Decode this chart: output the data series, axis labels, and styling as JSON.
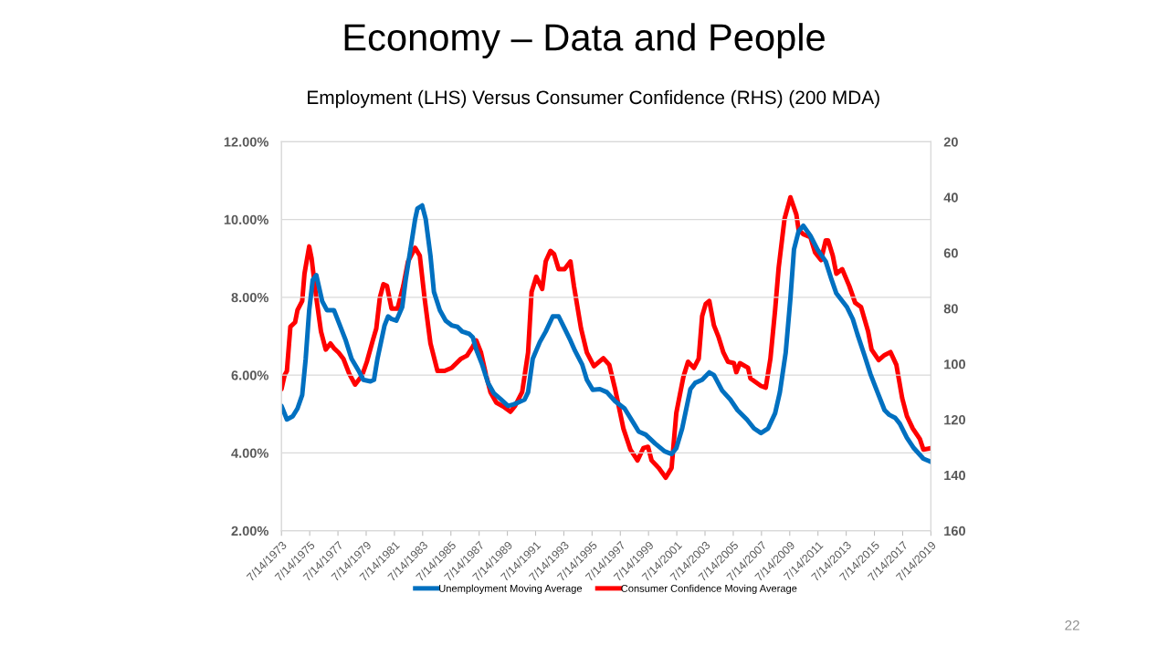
{
  "chart_data": {
    "type": "line",
    "title": "Economy – Data and People",
    "subtitle": "Employment (LHS) Versus Consumer Confidence (RHS) (200 MDA)",
    "annotations": [
      "22"
    ],
    "xlim": [
      "1973-07-14",
      "2019-07-14"
    ],
    "xticks": [
      {
        "value": "1973-07-14",
        "label": "7/14/1973"
      },
      {
        "value": "1975-07-14",
        "label": "7/14/1975"
      },
      {
        "value": "1977-07-14",
        "label": "7/14/1977"
      },
      {
        "value": "1979-07-14",
        "label": "7/14/1979"
      },
      {
        "value": "1981-07-14",
        "label": "7/14/1981"
      },
      {
        "value": "1983-07-14",
        "label": "7/14/1983"
      },
      {
        "value": "1985-07-14",
        "label": "7/14/1985"
      },
      {
        "value": "1987-07-14",
        "label": "7/14/1987"
      },
      {
        "value": "1989-07-14",
        "label": "7/14/1989"
      },
      {
        "value": "1991-07-14",
        "label": "7/14/1991"
      },
      {
        "value": "1993-07-14",
        "label": "7/14/1993"
      },
      {
        "value": "1995-07-14",
        "label": "7/14/1995"
      },
      {
        "value": "1997-07-14",
        "label": "7/14/1997"
      },
      {
        "value": "1999-07-14",
        "label": "7/14/1999"
      },
      {
        "value": "2001-07-14",
        "label": "7/14/2001"
      },
      {
        "value": "2003-07-14",
        "label": "7/14/2003"
      },
      {
        "value": "2005-07-14",
        "label": "7/14/2005"
      },
      {
        "value": "2007-07-14",
        "label": "7/14/2007"
      },
      {
        "value": "2009-07-14",
        "label": "7/14/2009"
      },
      {
        "value": "2011-07-14",
        "label": "7/14/2011"
      },
      {
        "value": "2013-07-14",
        "label": "7/14/2013"
      },
      {
        "value": "2015-07-14",
        "label": "7/14/2015"
      },
      {
        "value": "2017-07-14",
        "label": "7/14/2017"
      },
      {
        "value": "2019-07-14",
        "label": "7/14/2019"
      }
    ],
    "ylim": [
      2,
      12
    ],
    "yticks": [
      {
        "value": 2,
        "label": "2.00%"
      },
      {
        "value": 4,
        "label": "4.00%"
      },
      {
        "value": 6,
        "label": "6.00%"
      },
      {
        "value": 8,
        "label": "8.00%"
      },
      {
        "value": 10,
        "label": "10.00%"
      },
      {
        "value": 12,
        "label": "12.00%"
      }
    ],
    "y2lim": [
      160,
      20
    ],
    "y2ticks": [
      20,
      40,
      60,
      80,
      100,
      120,
      140,
      160
    ],
    "grid": "y",
    "legend": "bottom",
    "marker": "none",
    "line_style": "solid",
    "series": [
      {
        "name": "Unemployment Moving Average",
        "color": "#0070c0",
        "axis": "y",
        "x": [
          "1973-07-14",
          "1973-12",
          "1974-05",
          "1974-09",
          "1975-01",
          "1975-04",
          "1975-07",
          "1975-10",
          "1976-01",
          "1976-06",
          "1976-10",
          "1977-04",
          "1977-08",
          "1978-02",
          "1978-07",
          "1979-01",
          "1979-05",
          "1979-11",
          "1980-02",
          "1980-05",
          "1980-11",
          "1981-02",
          "1981-05",
          "1981-09",
          "1982-02",
          "1982-05",
          "1982-09",
          "1983-01",
          "1983-03",
          "1983-07",
          "1983-10",
          "1984-02",
          "1984-05",
          "1984-10",
          "1985-03",
          "1985-08",
          "1986-01",
          "1986-05",
          "1986-11",
          "1987-02",
          "1987-05",
          "1987-10",
          "1988-03",
          "1988-08",
          "1989-02",
          "1989-08",
          "1990-01",
          "1990-07",
          "1990-10",
          "1991-01",
          "1991-05",
          "1991-11",
          "1992-04",
          "1992-10",
          "1993-03",
          "1993-08",
          "1994-01",
          "1994-05",
          "1994-11",
          "1995-03",
          "1995-08",
          "1996-02",
          "1996-08",
          "1997-03",
          "1997-11",
          "1998-07",
          "1998-11",
          "1999-05",
          "2000-01",
          "2000-09",
          "2001-03",
          "2001-07",
          "2001-12",
          "2002-07",
          "2002-11",
          "2003-05",
          "2003-11",
          "2004-03",
          "2004-10",
          "2005-05",
          "2005-11",
          "2006-07",
          "2007-01",
          "2007-07",
          "2008-01",
          "2008-07",
          "2008-11",
          "2009-04",
          "2009-08",
          "2009-11",
          "2010-03",
          "2010-07",
          "2011-01",
          "2011-07",
          "2012-02",
          "2012-07",
          "2012-11",
          "2013-08",
          "2014-01",
          "2014-05",
          "2014-11",
          "2015-04",
          "2015-10",
          "2016-04",
          "2016-08",
          "2017-01",
          "2017-05",
          "2017-11",
          "2018-05",
          "2019-01",
          "2019-07-14"
        ],
        "values": [
          5.21,
          4.86,
          4.94,
          5.14,
          5.49,
          6.42,
          7.67,
          8.45,
          8.57,
          7.9,
          7.67,
          7.67,
          7.36,
          6.89,
          6.42,
          6.11,
          5.88,
          5.84,
          5.88,
          6.42,
          7.28,
          7.51,
          7.44,
          7.4,
          7.75,
          8.45,
          9.23,
          10.01,
          10.28,
          10.36,
          10.01,
          9.07,
          8.14,
          7.67,
          7.4,
          7.28,
          7.24,
          7.12,
          7.06,
          6.97,
          6.66,
          6.27,
          5.8,
          5.53,
          5.37,
          5.21,
          5.25,
          5.33,
          5.37,
          5.56,
          6.42,
          6.85,
          7.12,
          7.51,
          7.51,
          7.2,
          6.89,
          6.62,
          6.27,
          5.88,
          5.62,
          5.64,
          5.56,
          5.33,
          5.14,
          4.75,
          4.55,
          4.47,
          4.24,
          4.04,
          3.97,
          4.12,
          4.63,
          5.64,
          5.8,
          5.88,
          6.07,
          6.0,
          5.6,
          5.37,
          5.1,
          4.86,
          4.63,
          4.51,
          4.63,
          5.02,
          5.56,
          6.58,
          7.98,
          9.23,
          9.7,
          9.84,
          9.58,
          9.23,
          8.92,
          8.45,
          8.1,
          7.75,
          7.44,
          7.05,
          6.5,
          6.03,
          5.56,
          5.1,
          4.98,
          4.9,
          4.75,
          4.39,
          4.12,
          3.85,
          3.77
        ]
      },
      {
        "name": "Consumer Confidence Moving Average",
        "color": "#ff0000",
        "axis": "y2",
        "x": [
          "1973-07-14",
          "1973-10",
          "1973-12",
          "1974-03",
          "1974-07",
          "1974-09",
          "1975-01",
          "1975-03",
          "1975-07",
          "1975-09",
          "1976-01",
          "1976-05",
          "1976-09",
          "1977-01",
          "1977-04",
          "1977-08",
          "1977-12",
          "1978-05",
          "1978-10",
          "1979-04",
          "1979-08",
          "1980-01",
          "1980-04",
          "1980-07",
          "1980-10",
          "1981-01",
          "1981-05",
          "1981-10",
          "1982-03",
          "1982-07",
          "1983-01",
          "1983-05",
          "1983-09",
          "1984-02",
          "1984-08",
          "1985-02",
          "1985-08",
          "1986-04",
          "1986-09",
          "1987-02",
          "1987-05",
          "1987-09",
          "1988-01",
          "1988-05",
          "1988-10",
          "1989-05",
          "1989-10",
          "1990-02",
          "1990-08",
          "1991-01",
          "1991-04",
          "1991-08",
          "1992-01",
          "1992-04",
          "1992-08",
          "1992-11",
          "1993-03",
          "1993-08",
          "1994-01",
          "1994-04",
          "1994-10",
          "1995-03",
          "1995-09",
          "1996-05",
          "1996-10",
          "1997-03",
          "1997-10",
          "1998-04",
          "1998-10",
          "1999-03",
          "1999-07",
          "1999-10",
          "2000-04",
          "2000-10",
          "2001-03",
          "2001-07",
          "2002-01",
          "2002-05",
          "2002-10",
          "2003-02",
          "2003-05",
          "2003-08",
          "2003-11",
          "2004-03",
          "2004-07",
          "2004-11",
          "2005-03",
          "2005-08",
          "2005-10",
          "2006-01",
          "2006-08",
          "2006-10",
          "2007-07",
          "2007-11",
          "2008-03",
          "2008-07",
          "2008-10",
          "2009-03",
          "2009-08",
          "2010-01",
          "2010-03",
          "2010-07",
          "2011-01",
          "2011-05",
          "2011-10",
          "2012-02",
          "2012-04",
          "2012-08",
          "2012-11",
          "2013-04",
          "2013-10",
          "2014-03",
          "2014-08",
          "2015-02",
          "2015-05",
          "2015-11",
          "2016-04",
          "2016-09",
          "2017-02",
          "2017-07",
          "2017-11",
          "2018-04",
          "2018-10",
          "2019-01",
          "2019-07-14"
        ],
        "values": [
          109.0,
          104.1,
          102.5,
          86.6,
          85.0,
          80.6,
          77.3,
          67.5,
          57.7,
          62.0,
          76.2,
          88.3,
          94.8,
          92.6,
          94.3,
          95.9,
          98.1,
          103.5,
          107.4,
          104.1,
          99.2,
          91.5,
          87.2,
          76.2,
          71.3,
          71.9,
          80.1,
          80.1,
          71.9,
          63.1,
          58.2,
          61.0,
          76.2,
          92.6,
          102.5,
          102.5,
          101.4,
          98.1,
          97.0,
          93.7,
          91.5,
          95.9,
          103.5,
          110.1,
          113.9,
          115.6,
          117.2,
          115.0,
          110.1,
          95.9,
          74.1,
          68.6,
          73.0,
          63.1,
          59.3,
          60.4,
          65.9,
          65.9,
          63.1,
          71.9,
          87.2,
          95.9,
          100.8,
          97.9,
          100.3,
          109.0,
          123.2,
          130.8,
          134.7,
          130.3,
          129.8,
          134.7,
          137.4,
          140.9,
          137.4,
          117.7,
          104.6,
          99.2,
          101.4,
          98.1,
          82.8,
          78.4,
          77.3,
          86.1,
          90.4,
          95.9,
          99.2,
          99.7,
          103.0,
          99.7,
          101.4,
          105.2,
          107.9,
          108.5,
          98.1,
          80.6,
          65.3,
          47.8,
          40.0,
          46.2,
          51.7,
          53.3,
          54.4,
          59.9,
          62.6,
          55.5,
          55.5,
          61.0,
          67.5,
          65.9,
          71.9,
          77.9,
          79.5,
          88.3,
          94.8,
          98.6,
          96.8,
          95.7,
          100.3,
          112.3,
          118.8,
          123.2,
          127.0,
          130.8,
          130.3
        ]
      }
    ]
  }
}
